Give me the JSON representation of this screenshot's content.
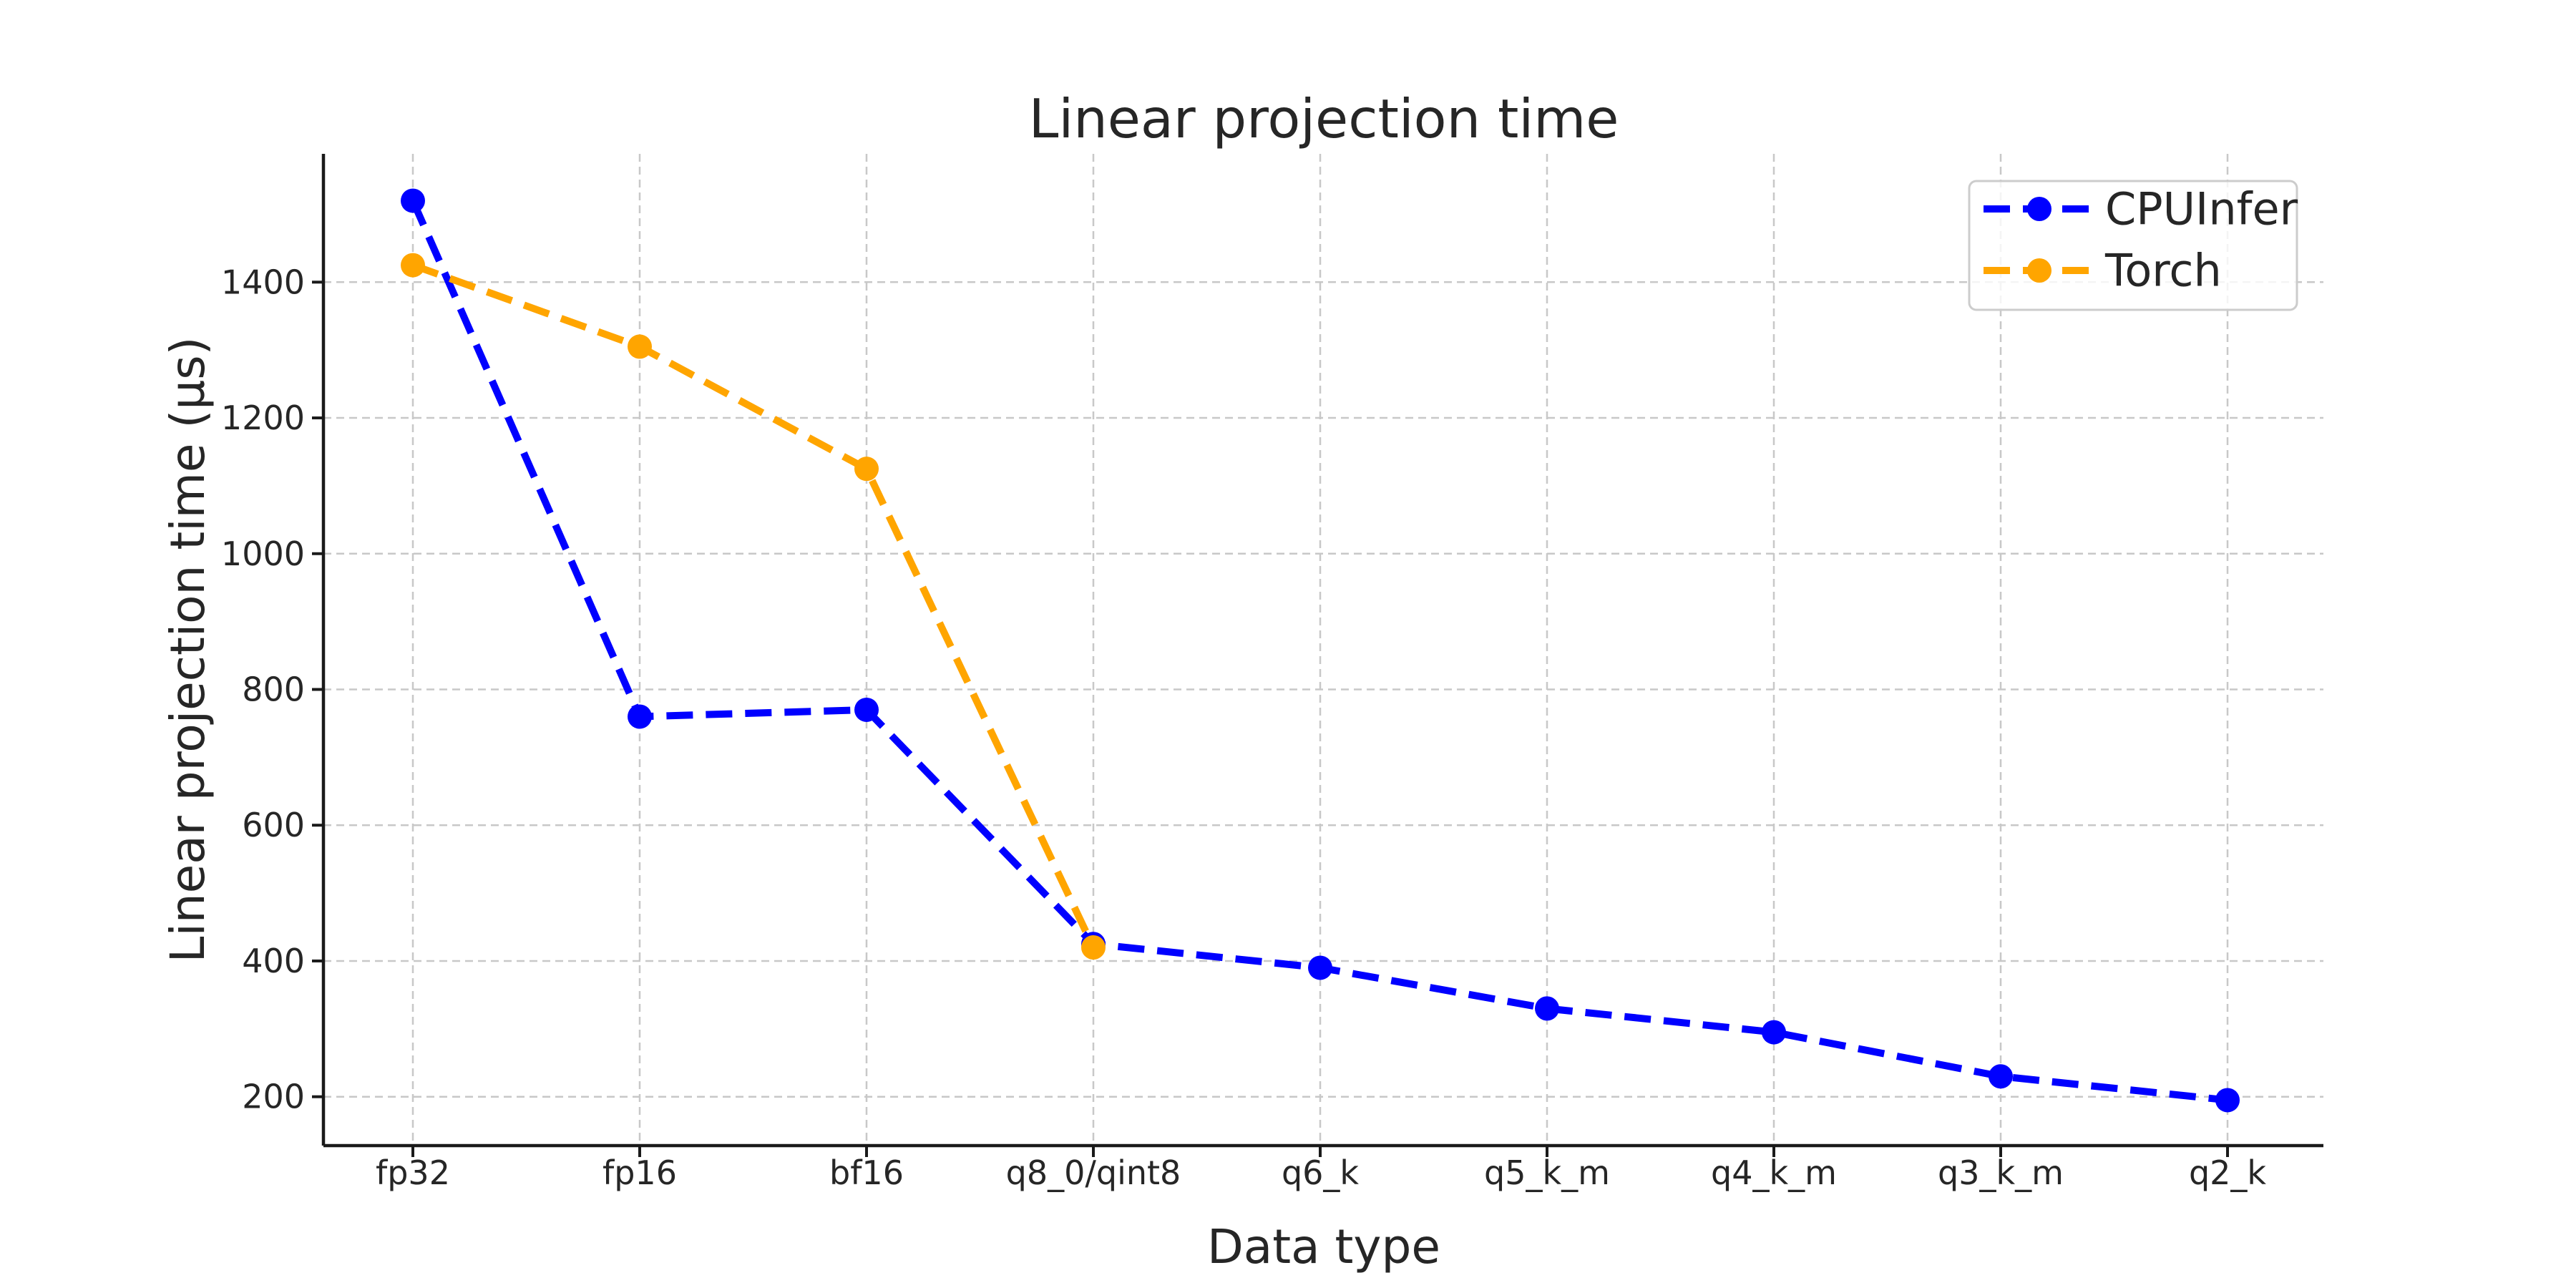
{
  "chart_data": {
    "type": "line",
    "title": "Linear projection time",
    "xlabel": "Data type",
    "ylabel": "Linear projection time (µs)",
    "categories": [
      "fp32",
      "fp16",
      "bf16",
      "q8_0/qint8",
      "q6_k",
      "q5_k_m",
      "q4_k_m",
      "q3_k_m",
      "q2_k"
    ],
    "series": [
      {
        "name": "CPUInfer",
        "color": "#0000ff",
        "values": [
          1520,
          760,
          770,
          425,
          390,
          330,
          295,
          230,
          195
        ]
      },
      {
        "name": "Torch",
        "color": "#ffa500",
        "values": [
          1425,
          1305,
          1125,
          420,
          null,
          null,
          null,
          null,
          null
        ]
      }
    ],
    "y_ticks": [
      200,
      400,
      600,
      800,
      1000,
      1200,
      1400
    ],
    "ylim": [
      128,
      1589
    ],
    "xlim": [
      -0.4,
      8.4
    ],
    "grid": true,
    "grid_style": "dashed",
    "legend_position": "upper right",
    "line_style": "dashed",
    "marker": "circle"
  },
  "styles": {
    "background": "#ffffff",
    "accent_blue": "#0000ff",
    "accent_orange": "#ffa500",
    "grid_color": "#c8c8c8",
    "axis_color": "#1a1a1a",
    "text_color": "#262626",
    "legend_border": "#cccccc",
    "legend_fill": "#ffffff"
  }
}
